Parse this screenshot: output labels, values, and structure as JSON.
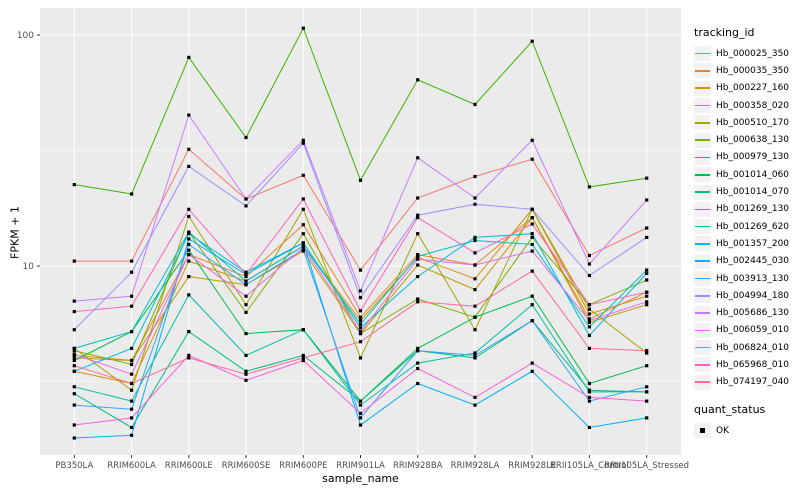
{
  "chart_data": {
    "type": "line",
    "title": "",
    "xlabel": "sample_name",
    "ylabel": "FPKM + 1",
    "y_scale": "log10",
    "y_ticks": [
      10,
      100
    ],
    "y_minor_ticks": [
      3.162,
      31.62
    ],
    "ylim": [
      1.5,
      131
    ],
    "grid": true,
    "legend_position": "right",
    "legend_title": "tracking_id",
    "legend2_title": "quant_status",
    "legend2_items": [
      "OK"
    ],
    "point_shape": "filled-square",
    "point_color": "#000000",
    "panel_bg": "#EBEBEB",
    "grid_color": "#FFFFFF",
    "tick_label_color": "#4D4D4D",
    "x_categories": [
      "PB350LA",
      "RRIM600LA",
      "RRIM600LE",
      "RRIM600SE",
      "RRIM600PE",
      "RRIM901LA",
      "RRIM928BA",
      "RRIM928LA",
      "RRIM928LE",
      "RRII105LA_Control",
      "RRII105LA_Stressed"
    ],
    "series": [
      {
        "name": "Hb_000025_350",
        "color": "#F8766D",
        "values": [
          10.5,
          10.5,
          32,
          19.5,
          24.7,
          9.6,
          19.7,
          24.4,
          29,
          11.1,
          14.6
        ]
      },
      {
        "name": "Hb_000035_350",
        "color": "#EA8331",
        "values": [
          4.1,
          3.9,
          11.2,
          9.0,
          15.1,
          6.0,
          11.2,
          10.1,
          16.2,
          5.9,
          7.7
        ]
      },
      {
        "name": "Hb_000227_160",
        "color": "#D89000",
        "values": [
          3.5,
          3.1,
          10.5,
          8.6,
          12.2,
          5.8,
          10.9,
          8.8,
          17.6,
          6.2,
          7.4
        ]
      },
      {
        "name": "Hb_000358_020",
        "color": "#C09B00",
        "values": [
          4.0,
          3.9,
          9.0,
          8.3,
          11.6,
          5.1,
          10.1,
          7.9,
          16.2,
          5.7,
          6.8
        ]
      },
      {
        "name": "Hb_000510_170",
        "color": "#A3A500",
        "values": [
          4.4,
          2.9,
          16.4,
          6.8,
          17.6,
          4.0,
          13.8,
          5.3,
          17.6,
          6.5,
          4.2
        ]
      },
      {
        "name": "Hb_000638_130",
        "color": "#7CAE00",
        "values": [
          4.3,
          3.75,
          14.0,
          6.3,
          13.8,
          5.1,
          7.2,
          6.0,
          13.3,
          6.8,
          8.7
        ]
      },
      {
        "name": "Hb_000979_130",
        "color": "#39B600",
        "values": [
          22.5,
          20.5,
          80,
          36,
          107,
          23.5,
          64,
          50,
          94,
          22,
          24
        ]
      },
      {
        "name": "Hb_001014_060",
        "color": "#00BB4E",
        "values": [
          3.9,
          5.2,
          11.7,
          5.1,
          5.3,
          2.6,
          4.4,
          6.0,
          7.4,
          3.1,
          3.7
        ]
      },
      {
        "name": "Hb_001014_070",
        "color": "#00BF7D",
        "values": [
          2.8,
          2.0,
          5.2,
          3.5,
          4.1,
          2.6,
          4.3,
          4.0,
          5.8,
          2.9,
          2.85
        ]
      },
      {
        "name": "Hb_001269_130",
        "color": "#00C1A3",
        "values": [
          3.0,
          2.6,
          7.5,
          4.1,
          5.3,
          2.5,
          3.8,
          4.2,
          6.8,
          2.85,
          2.85
        ]
      },
      {
        "name": "Hb_001269_620",
        "color": "#00BFC4",
        "values": [
          4.4,
          5.2,
          14.0,
          8.6,
          12.2,
          5.6,
          11.0,
          12.9,
          12.4,
          5.45,
          9.6
        ]
      },
      {
        "name": "Hb_001357_200",
        "color": "#00BAE0",
        "values": [
          3.5,
          4.4,
          13.8,
          9.4,
          12.6,
          5.4,
          9.0,
          13.3,
          13.8,
          5.0,
          9.3
        ]
      },
      {
        "name": "Hb_002445_030",
        "color": "#00B0F6",
        "values": [
          1.8,
          1.85,
          13.1,
          9.2,
          12.6,
          2.05,
          3.1,
          2.5,
          3.5,
          2.0,
          2.2
        ]
      },
      {
        "name": "Hb_003913_130",
        "color": "#35A2FF",
        "values": [
          2.5,
          2.4,
          12.4,
          8.3,
          11.8,
          2.2,
          4.3,
          4.1,
          5.8,
          2.6,
          3.0
        ]
      },
      {
        "name": "Hb_004994_180",
        "color": "#9590FF",
        "values": [
          5.3,
          9.4,
          27,
          18.2,
          34,
          7.3,
          16.6,
          18.5,
          17.6,
          9.1,
          13.3
        ]
      },
      {
        "name": "Hb_005686_130",
        "color": "#C77CFF",
        "values": [
          7.05,
          7.4,
          45,
          19.5,
          35,
          7.8,
          29.4,
          19.7,
          35,
          10.2,
          19.3
        ]
      },
      {
        "name": "Hb_006059_010",
        "color": "#E76BF3",
        "values": [
          4.15,
          3.4,
          11.2,
          7.4,
          12.0,
          5.2,
          10.7,
          10.1,
          11.6,
          5.8,
          7.0
        ]
      },
      {
        "name": "Hb_006824_010",
        "color": "#FA62DB",
        "values": [
          2.05,
          2.2,
          4.1,
          3.2,
          3.9,
          2.3,
          3.6,
          2.7,
          3.8,
          2.7,
          2.6
        ]
      },
      {
        "name": "Hb_065968_010",
        "color": "#FF62BC",
        "values": [
          6.35,
          6.7,
          17.6,
          9.2,
          19.5,
          6.4,
          16.2,
          11.4,
          15.2,
          6.8,
          7.7
        ]
      },
      {
        "name": "Hb_074197_040",
        "color": "#FF6A98",
        "values": [
          3.7,
          3.1,
          4.0,
          3.4,
          4.0,
          4.7,
          7.0,
          6.7,
          9.5,
          4.4,
          4.3
        ]
      }
    ]
  }
}
